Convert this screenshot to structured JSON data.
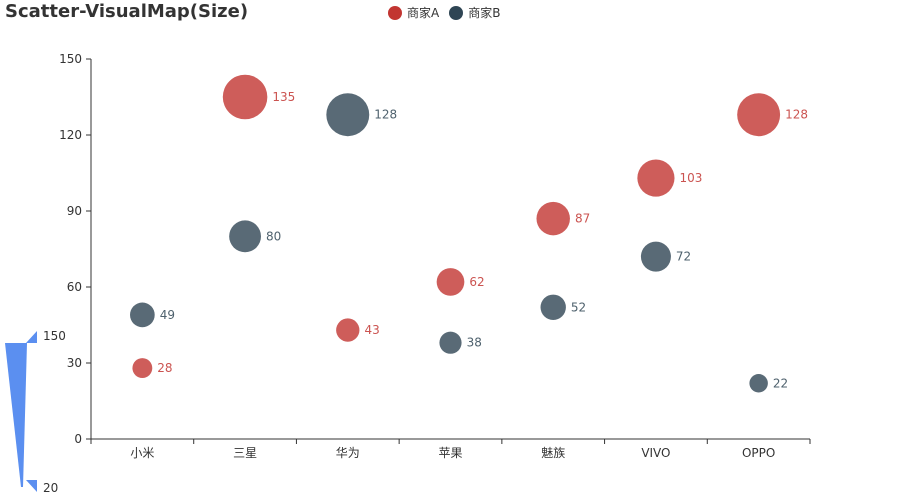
{
  "chart_data": {
    "type": "scatter",
    "title": "Scatter-VisualMap(Size)",
    "categories": [
      "小米",
      "三星",
      "华为",
      "苹果",
      "魅族",
      "VIVO",
      "OPPO"
    ],
    "series": [
      {
        "name": "商家A",
        "color": "#c23531",
        "values": [
          28,
          135,
          43,
          62,
          87,
          103,
          128
        ]
      },
      {
        "name": "商家B",
        "color": "#2f4554",
        "values": [
          49,
          80,
          128,
          38,
          52,
          72,
          22
        ]
      }
    ],
    "ylim": [
      0,
      150
    ],
    "yticks": [
      0,
      30,
      60,
      90,
      120,
      150
    ],
    "grid": false,
    "legend_position": "top-center",
    "visual_map": {
      "dimension": "size",
      "max": 150,
      "min": 20,
      "max_label": "150",
      "min_label": "20",
      "color": "#5b8ff0"
    }
  }
}
